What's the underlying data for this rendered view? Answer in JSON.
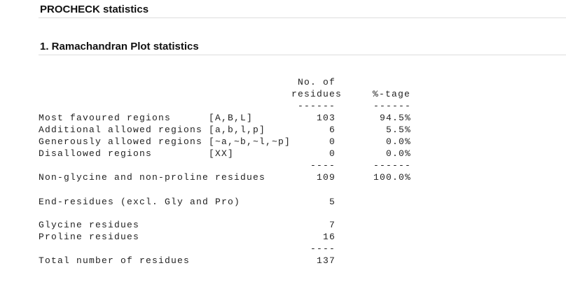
{
  "title": "PROCHECK statistics",
  "section": "1. Ramachandran Plot statistics",
  "columns": {
    "count": [
      "No. of",
      "residues"
    ],
    "percent": "%-tage"
  },
  "header_rule": {
    "count": "------",
    "percent": "------"
  },
  "regions": [
    {
      "label": "Most favoured regions",
      "region": "[A,B,L]",
      "count": "103",
      "percent": "94.5%"
    },
    {
      "label": "Additional allowed regions",
      "region": "[a,b,l,p]",
      "count": "6",
      "percent": "5.5%"
    },
    {
      "label": "Generously allowed regions",
      "region": "[~a,~b,~l,~p]",
      "count": "0",
      "percent": "0.0%"
    },
    {
      "label": "Disallowed regions",
      "region": "[XX]",
      "count": "0",
      "percent": "0.0%"
    }
  ],
  "region_rule": {
    "count": "----",
    "percent": "------"
  },
  "non_gly_pro": {
    "label": "Non-glycine and non-proline residues",
    "count": "109",
    "percent": "100.0%"
  },
  "end_residues": {
    "label": "End-residues (excl. Gly and Pro)",
    "count": "5"
  },
  "glycine": {
    "label": "Glycine residues",
    "count": "7"
  },
  "proline": {
    "label": "Proline residues",
    "count": "16"
  },
  "total_rule": {
    "count": "----"
  },
  "total": {
    "label": "Total number of residues",
    "count": "137"
  }
}
